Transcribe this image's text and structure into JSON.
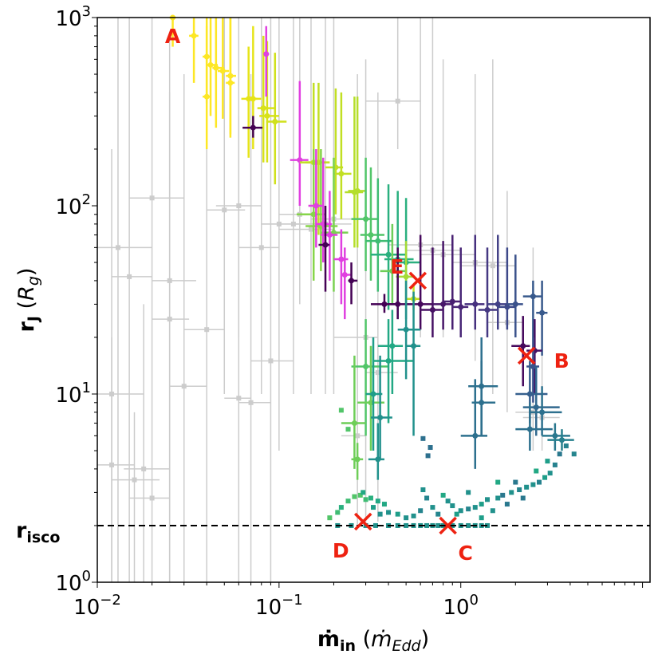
{
  "chart_data": {
    "type": "scatter",
    "title": "",
    "xlabel": {
      "main": "ṁ",
      "sub": "in",
      "unit_main": "ṁ",
      "unit_sub": "Edd"
    },
    "ylabel": {
      "main": "r",
      "sub": "J",
      "unit_main": "R",
      "unit_sub": "g"
    },
    "x_scale": "log",
    "y_scale": "log",
    "xlim": [
      0.01,
      11
    ],
    "ylim": [
      1,
      1000
    ],
    "grid": false,
    "x_ticks": [
      {
        "value": 0.01,
        "base": "10",
        "exp": "−2"
      },
      {
        "value": 0.1,
        "base": "10",
        "exp": "−1"
      },
      {
        "value": 1,
        "base": "10",
        "exp": "0"
      }
    ],
    "y_ticks": [
      {
        "value": 1,
        "base": "10",
        "exp": "0"
      },
      {
        "value": 10,
        "base": "10",
        "exp": "1"
      },
      {
        "value": 100,
        "base": "10",
        "exp": "2"
      },
      {
        "value": 1000,
        "base": "10",
        "exp": "3"
      }
    ],
    "reference_line": {
      "y": 2,
      "label_main": "r",
      "label_sub": "isco",
      "style": "dashed",
      "color": "#000000"
    },
    "colors": {
      "background_points": "#cccccc",
      "magenta": "#e040e0",
      "markers": "#ee2211",
      "colormap": "viridis"
    },
    "annotations": [
      {
        "label": "A",
        "x": 0.026,
        "y": 800,
        "marker": false
      },
      {
        "label": "B",
        "x": 2.3,
        "y": 16,
        "marker": true
      },
      {
        "label": "C",
        "x": 0.85,
        "y": 2.0,
        "marker": true
      },
      {
        "label": "D",
        "x": 0.29,
        "y": 2.1,
        "marker": true
      },
      {
        "label": "E",
        "x": 0.58,
        "y": 40,
        "marker": true
      }
    ],
    "background_points": [
      [
        0.012,
        4.2,
        0.01,
        0.016,
        1,
        20
      ],
      [
        0.015,
        42,
        0.012,
        0.02,
        1,
        1000
      ],
      [
        0.02,
        2.8,
        0.015,
        0.025,
        1,
        5
      ],
      [
        0.013,
        60,
        0.01,
        0.02,
        1,
        1000
      ],
      [
        0.02,
        110,
        0.015,
        0.03,
        5,
        1000
      ],
      [
        0.025,
        25,
        0.02,
        0.032,
        1,
        800
      ],
      [
        0.03,
        11,
        0.025,
        0.04,
        1,
        500
      ],
      [
        0.04,
        22,
        0.03,
        0.05,
        1,
        1000
      ],
      [
        0.05,
        95,
        0.04,
        0.065,
        10,
        1000
      ],
      [
        0.06,
        9.5,
        0.05,
        0.07,
        1,
        300
      ],
      [
        0.07,
        9,
        0.06,
        0.09,
        1,
        500
      ],
      [
        0.09,
        15,
        0.07,
        0.12,
        1,
        1000
      ],
      [
        0.1,
        80,
        0.08,
        0.13,
        5,
        1000
      ],
      [
        0.12,
        80,
        0.08,
        0.2,
        10,
        1000
      ],
      [
        0.15,
        75,
        0.1,
        0.2,
        10,
        1000
      ],
      [
        0.18,
        80,
        0.12,
        0.25,
        10,
        1000
      ],
      [
        0.2,
        85,
        0.15,
        0.3,
        10,
        1000
      ],
      [
        0.6,
        62,
        0.4,
        0.9,
        20,
        1000
      ],
      [
        0.8,
        55,
        0.6,
        1.2,
        20,
        600
      ],
      [
        1.2,
        50,
        0.9,
        1.8,
        15,
        500
      ],
      [
        1.5,
        48,
        1.0,
        2.0,
        10,
        600
      ],
      [
        2.5,
        8,
        2.0,
        3.0,
        5,
        60
      ],
      [
        2.8,
        7.5,
        2.2,
        3.5,
        5,
        40
      ],
      [
        0.45,
        360,
        0.3,
        0.6,
        200,
        1000
      ],
      [
        0.3,
        20,
        0.2,
        0.35,
        2.1,
        600
      ],
      [
        0.35,
        13,
        0.3,
        0.45,
        2.1,
        400
      ],
      [
        0.025,
        40,
        0.02,
        0.035,
        1,
        400
      ],
      [
        0.012,
        10,
        0.01,
        0.018,
        1,
        200
      ],
      [
        0.016,
        3.5,
        0.012,
        0.022,
        1,
        8
      ],
      [
        0.018,
        4,
        0.014,
        0.025,
        1,
        30
      ],
      [
        0.06,
        100,
        0.045,
        0.08,
        20,
        1000
      ],
      [
        0.08,
        60,
        0.06,
        0.1,
        10,
        1000
      ],
      [
        0.13,
        90,
        0.1,
        0.18,
        30,
        1000
      ],
      [
        0.27,
        6,
        0.22,
        0.3,
        2,
        500
      ],
      [
        0.7,
        58,
        0.5,
        1.0,
        30,
        1000
      ],
      [
        1.8,
        24,
        1.4,
        2.2,
        8,
        120
      ]
    ],
    "colored_points": [
      [
        0.026,
        1000,
        0.025,
        0.027,
        700,
        1000,
        "#fde725"
      ],
      [
        0.034,
        800,
        0.032,
        0.036,
        450,
        1000,
        "#fde725"
      ],
      [
        0.04,
        620,
        0.038,
        0.042,
        350,
        1000,
        "#fde725"
      ],
      [
        0.042,
        560,
        0.04,
        0.046,
        300,
        1000,
        "#fde725"
      ],
      [
        0.045,
        540,
        0.043,
        0.05,
        260,
        1000,
        "#fde725"
      ],
      [
        0.049,
        520,
        0.046,
        0.053,
        290,
        1000,
        "#fde725"
      ],
      [
        0.054,
        490,
        0.051,
        0.058,
        240,
        1000,
        "#fde725"
      ],
      [
        0.054,
        450,
        0.051,
        0.057,
        230,
        1000,
        "#fde725"
      ],
      [
        0.04,
        380,
        0.038,
        0.042,
        200,
        900,
        "#fde725"
      ],
      [
        0.068,
        370,
        0.062,
        0.076,
        180,
        700,
        "#e6e419"
      ],
      [
        0.072,
        370,
        0.066,
        0.08,
        200,
        900,
        "#e6e419"
      ],
      [
        0.082,
        330,
        0.076,
        0.095,
        170,
        800,
        "#d8e219"
      ],
      [
        0.086,
        300,
        0.078,
        0.1,
        170,
        750,
        "#d8e219"
      ],
      [
        0.095,
        280,
        0.085,
        0.11,
        130,
        650,
        "#d0e11c"
      ],
      [
        0.072,
        260,
        0.063,
        0.081,
        230,
        300,
        "#440154"
      ],
      [
        0.13,
        175,
        0.115,
        0.145,
        100,
        460,
        "#e040e0"
      ],
      [
        0.085,
        640,
        0.083,
        0.088,
        380,
        900,
        "#e040e0"
      ],
      [
        0.155,
        170,
        0.13,
        0.18,
        90,
        450,
        "#c2df23"
      ],
      [
        0.165,
        170,
        0.14,
        0.19,
        70,
        450,
        "#c2df23"
      ],
      [
        0.205,
        160,
        0.18,
        0.225,
        90,
        420,
        "#c2df23"
      ],
      [
        0.22,
        148,
        0.2,
        0.25,
        85,
        400,
        "#c2df23"
      ],
      [
        0.26,
        118,
        0.23,
        0.29,
        60,
        380,
        "#b5de2b"
      ],
      [
        0.27,
        120,
        0.24,
        0.3,
        60,
        380,
        "#b5de2b"
      ],
      [
        0.155,
        90,
        0.125,
        0.18,
        40,
        200,
        "#86d549"
      ],
      [
        0.17,
        78,
        0.14,
        0.21,
        45,
        200,
        "#86d549"
      ],
      [
        0.2,
        72,
        0.17,
        0.24,
        35,
        180,
        "#7ad151"
      ],
      [
        0.16,
        100,
        0.145,
        0.175,
        60,
        200,
        "#e040e0"
      ],
      [
        0.175,
        80,
        0.16,
        0.195,
        50,
        180,
        "#e040e0"
      ],
      [
        0.19,
        70,
        0.17,
        0.21,
        40,
        120,
        "#e040e0"
      ],
      [
        0.18,
        62,
        0.165,
        0.19,
        35,
        100,
        "#440154"
      ],
      [
        0.22,
        52,
        0.2,
        0.24,
        30,
        75,
        "#e040e0"
      ],
      [
        0.23,
        43,
        0.22,
        0.25,
        25,
        60,
        "#e040e0"
      ],
      [
        0.25,
        40,
        0.24,
        0.27,
        30,
        50,
        "#440154"
      ],
      [
        0.3,
        85,
        0.25,
        0.35,
        45,
        180,
        "#52c569"
      ],
      [
        0.32,
        70,
        0.28,
        0.38,
        40,
        160,
        "#52c569"
      ],
      [
        0.35,
        65,
        0.3,
        0.42,
        35,
        140,
        "#3fbc73"
      ],
      [
        0.4,
        55,
        0.32,
        0.5,
        28,
        130,
        "#2ab07f"
      ],
      [
        0.45,
        52,
        0.38,
        0.55,
        25,
        120,
        "#2ab07f"
      ],
      [
        0.5,
        50,
        0.42,
        0.6,
        25,
        110,
        "#2ab07f"
      ],
      [
        0.42,
        45,
        0.36,
        0.5,
        30,
        80,
        "#6ece58"
      ],
      [
        0.5,
        42,
        0.44,
        0.56,
        30,
        65,
        "#a5db36"
      ],
      [
        0.55,
        32,
        0.5,
        0.6,
        28,
        38,
        "#c2df23"
      ],
      [
        0.38,
        30,
        0.32,
        0.44,
        27,
        34,
        "#440154"
      ],
      [
        0.45,
        30,
        0.4,
        0.52,
        25,
        60,
        "#450457"
      ],
      [
        0.6,
        30,
        0.52,
        0.7,
        22,
        70,
        "#46085c"
      ],
      [
        0.7,
        28,
        0.6,
        0.8,
        20,
        60,
        "#471164"
      ],
      [
        0.8,
        30,
        0.7,
        0.9,
        22,
        65,
        "#481769"
      ],
      [
        0.9,
        31,
        0.8,
        1.0,
        22,
        70,
        "#482071"
      ],
      [
        1.0,
        29,
        0.9,
        1.1,
        20,
        60,
        "#482576"
      ],
      [
        1.2,
        30,
        1.05,
        1.35,
        22,
        70,
        "#46307e"
      ],
      [
        1.4,
        28,
        1.25,
        1.6,
        20,
        60,
        "#453882"
      ],
      [
        1.6,
        30,
        1.4,
        1.8,
        22,
        70,
        "#424086"
      ],
      [
        1.8,
        29,
        1.6,
        2.0,
        22,
        60,
        "#3e4989"
      ],
      [
        2.0,
        30,
        1.8,
        2.2,
        20,
        55,
        "#3b528b"
      ],
      [
        2.5,
        33,
        2.2,
        2.8,
        20,
        40,
        "#38598c"
      ],
      [
        2.8,
        27,
        2.6,
        3.0,
        16,
        40,
        "#38598c"
      ],
      [
        2.2,
        18,
        1.9,
        2.4,
        11,
        26,
        "#46085c"
      ],
      [
        2.55,
        17,
        2.3,
        2.8,
        10,
        25,
        "#471164"
      ],
      [
        2.5,
        14,
        2.3,
        2.7,
        9,
        20,
        "#3b528b"
      ],
      [
        2.4,
        10,
        2.0,
        3.0,
        7,
        15,
        "#355f8d"
      ],
      [
        2.6,
        8.5,
        2.2,
        3.5,
        6,
        14,
        "#31688e"
      ],
      [
        2.8,
        8,
        2.4,
        3.6,
        6,
        11,
        "#2d708e"
      ],
      [
        2.4,
        6.5,
        2.0,
        3.2,
        5,
        9,
        "#2d708e"
      ],
      [
        3.3,
        6.0,
        2.8,
        4.0,
        5,
        7,
        "#2a788e"
      ],
      [
        3.6,
        5.7,
        3.0,
        4.2,
        5,
        6.5,
        "#27808e"
      ],
      [
        1.3,
        11,
        1.1,
        1.6,
        6,
        20,
        "#2d708e"
      ],
      [
        1.3,
        9,
        1.15,
        1.55,
        6,
        15,
        "#2d708e"
      ],
      [
        1.2,
        6,
        1.0,
        1.4,
        4,
        12,
        "#2d708e"
      ],
      [
        0.3,
        14,
        0.25,
        0.4,
        6,
        25,
        "#52c569"
      ],
      [
        0.32,
        9,
        0.27,
        0.38,
        5,
        18,
        "#6ece58"
      ],
      [
        0.33,
        10,
        0.3,
        0.37,
        5,
        20,
        "#1f9e89"
      ],
      [
        0.4,
        15,
        0.33,
        0.55,
        7,
        25,
        "#22a884"
      ],
      [
        0.42,
        18,
        0.35,
        0.48,
        10,
        28,
        "#22a884"
      ],
      [
        0.36,
        7.5,
        0.32,
        0.42,
        4.5,
        16,
        "#21918c"
      ],
      [
        0.35,
        4.5,
        0.31,
        0.38,
        3.5,
        7,
        "#21918c"
      ],
      [
        0.26,
        7,
        0.22,
        0.3,
        4,
        16,
        "#6ece58"
      ],
      [
        0.27,
        4.5,
        0.25,
        0.29,
        3.5,
        5.5,
        "#6ece58"
      ],
      [
        0.5,
        22,
        0.45,
        0.6,
        12,
        40,
        "#21918c"
      ],
      [
        0.55,
        18,
        0.5,
        0.6,
        6,
        35,
        "#21918c"
      ]
    ],
    "square_points": [
      [
        0.22,
        8.2,
        "#52c569"
      ],
      [
        0.24,
        6.5,
        "#52c569"
      ],
      [
        0.62,
        5.8,
        "#2d708e"
      ],
      [
        0.68,
        5.2,
        "#2d708e"
      ],
      [
        0.66,
        4.7,
        "#2d708e"
      ],
      [
        4.2,
        4.8,
        "#25858e"
      ],
      [
        3.8,
        5.3,
        "#26828e"
      ],
      [
        3.5,
        4.8,
        "#2a788e"
      ],
      [
        3.3,
        4.2,
        "#26828e"
      ],
      [
        3.1,
        3.8,
        "#21918c"
      ],
      [
        2.9,
        3.6,
        "#1f9e89"
      ],
      [
        2.7,
        3.4,
        "#26828e"
      ],
      [
        2.5,
        3.3,
        "#21918c"
      ],
      [
        2.3,
        3.2,
        "#21918c"
      ],
      [
        2.1,
        3.1,
        "#25858e"
      ],
      [
        1.9,
        3.0,
        "#21918c"
      ],
      [
        1.7,
        2.9,
        "#2a788e"
      ],
      [
        1.6,
        2.8,
        "#21918c"
      ],
      [
        1.4,
        2.75,
        "#21918c"
      ],
      [
        1.3,
        2.6,
        "#1f9e89"
      ],
      [
        1.2,
        2.5,
        "#21918c"
      ],
      [
        1.1,
        2.45,
        "#25858e"
      ],
      [
        1.0,
        2.4,
        "#21918c"
      ],
      [
        0.95,
        2.3,
        "#1f9e89"
      ],
      [
        0.9,
        2.55,
        "#21918c"
      ],
      [
        0.85,
        2.7,
        "#21918c"
      ],
      [
        1.5,
        2.4,
        "#21918c"
      ],
      [
        1.8,
        2.6,
        "#2a788e"
      ],
      [
        2.2,
        2.8,
        "#2a788e"
      ],
      [
        1.3,
        2.2,
        "#1f9e89"
      ],
      [
        0.75,
        2.3,
        "#25858e"
      ],
      [
        0.7,
        2.5,
        "#21918c"
      ],
      [
        0.6,
        2.4,
        "#25858e"
      ],
      [
        0.55,
        2.25,
        "#21918c"
      ],
      [
        0.5,
        2.2,
        "#21918c"
      ],
      [
        0.45,
        2.3,
        "#1f9e89"
      ],
      [
        0.4,
        2.35,
        "#21918c"
      ],
      [
        0.38,
        2.6,
        "#22a884"
      ],
      [
        0.35,
        2.7,
        "#22a884"
      ],
      [
        0.32,
        2.8,
        "#2ab07f"
      ],
      [
        0.3,
        2.75,
        "#3fbc73"
      ],
      [
        0.28,
        2.9,
        "#52c569"
      ],
      [
        0.26,
        2.85,
        "#52c569"
      ],
      [
        0.24,
        2.7,
        "#3fbc73"
      ],
      [
        0.22,
        2.5,
        "#2ab07f"
      ],
      [
        0.21,
        2.35,
        "#3fbc73"
      ],
      [
        0.19,
        2.2,
        "#52c569"
      ],
      [
        0.29,
        3.0,
        "#22a884"
      ],
      [
        0.33,
        2.5,
        "#1f9e89"
      ],
      [
        0.36,
        2.3,
        "#21918c"
      ],
      [
        0.65,
        2.8,
        "#25858e"
      ],
      [
        0.62,
        3.1,
        "#21918c"
      ],
      [
        0.8,
        2.9,
        "#22a884"
      ],
      [
        1.1,
        3.0,
        "#21918c"
      ],
      [
        1.6,
        3.4,
        "#22a884"
      ],
      [
        2.0,
        3.4,
        "#2a788e"
      ],
      [
        2.6,
        3.9,
        "#22a884"
      ],
      [
        3.0,
        4.4,
        "#1f9e89"
      ],
      [
        0.21,
        2.0,
        "#21918c"
      ],
      [
        0.25,
        2.0,
        "#21918c"
      ],
      [
        0.3,
        2.0,
        "#21918c"
      ],
      [
        0.34,
        2.0,
        "#21918c"
      ],
      [
        0.4,
        2.0,
        "#21918c"
      ],
      [
        0.45,
        2.0,
        "#21918c"
      ],
      [
        0.5,
        2.0,
        "#21918c"
      ],
      [
        0.55,
        2.0,
        "#21918c"
      ],
      [
        0.6,
        2.0,
        "#21918c"
      ],
      [
        0.65,
        2.0,
        "#21918c"
      ],
      [
        0.7,
        2.0,
        "#21918c"
      ],
      [
        0.75,
        2.0,
        "#21918c"
      ],
      [
        0.8,
        2.0,
        "#21918c"
      ],
      [
        0.9,
        2.0,
        "#21918c"
      ],
      [
        1.0,
        2.0,
        "#21918c"
      ],
      [
        1.1,
        2.0,
        "#21918c"
      ],
      [
        1.2,
        2.0,
        "#21918c"
      ],
      [
        1.3,
        2.0,
        "#21918c"
      ],
      [
        1.4,
        2.0,
        "#21918c"
      ]
    ]
  }
}
